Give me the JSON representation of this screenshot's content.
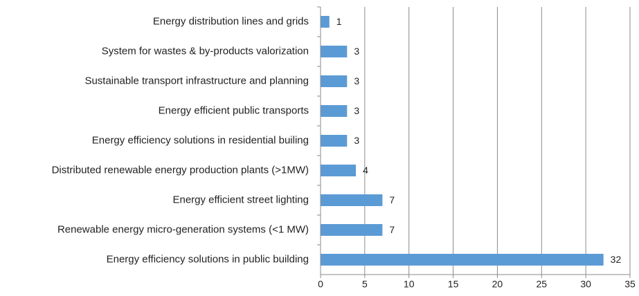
{
  "chart_data": {
    "type": "barh",
    "categories": [
      "Energy distribution lines and grids",
      "System for wastes & by-products valorization",
      "Sustainable transport infrastructure and planning",
      "Energy efficient public transports",
      "Energy efficiency solutions in residential builing",
      "Distributed renewable energy production plants (>1MW)",
      "Energy efficient street lighting",
      "Renewable energy micro-generation systems (<1 MW)",
      "Energy efficiency solutions in public building"
    ],
    "values": [
      1,
      3,
      3,
      3,
      3,
      4,
      7,
      7,
      32
    ],
    "color": "#5b9bd5",
    "xlim": [
      0,
      35
    ],
    "xticks": [
      0,
      5,
      10,
      15,
      20,
      25,
      30,
      35
    ],
    "grid": true
  }
}
